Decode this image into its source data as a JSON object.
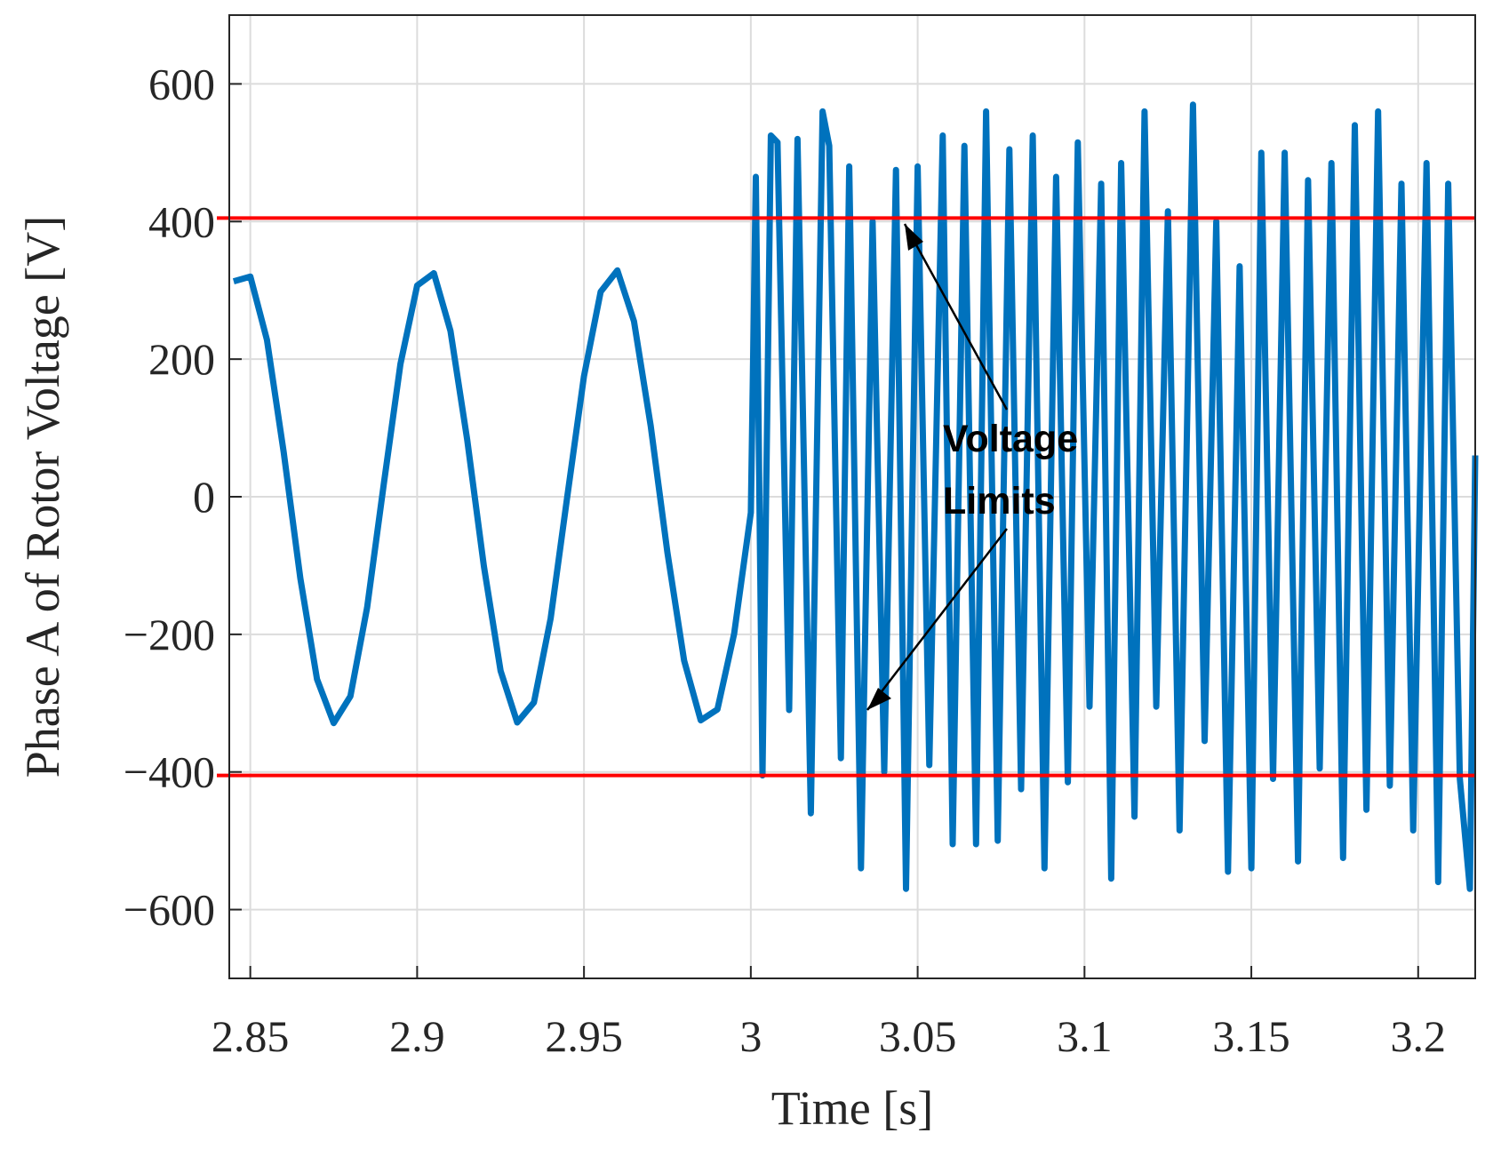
{
  "chart_data": {
    "type": "line",
    "xlabel": "Time [s]",
    "ylabel": "Phase A of Rotor Voltage [V]",
    "xlim": [
      2.8437,
      3.2171
    ],
    "ylim": [
      -700,
      700
    ],
    "xticks": [
      2.85,
      2.9,
      2.95,
      3,
      3.05,
      3.1,
      3.15,
      3.2
    ],
    "yticks": [
      {
        "value": -600,
        "label": "−600"
      },
      {
        "value": -400,
        "label": "−400"
      },
      {
        "value": -200,
        "label": "−200"
      },
      0,
      200,
      400,
      600
    ],
    "grid": true,
    "x": [
      2.845,
      2.85,
      2.855,
      2.86,
      2.865,
      2.87,
      2.875,
      2.88,
      2.885,
      2.89,
      2.895,
      2.9,
      2.905,
      2.91,
      2.915,
      2.92,
      2.925,
      2.93,
      2.935,
      2.94,
      2.945,
      2.95,
      2.955,
      2.96,
      2.965,
      2.97,
      2.975,
      2.98,
      2.985,
      2.99,
      2.995,
      3.0,
      3.0015,
      3.0035,
      3.006,
      3.008,
      3.0115,
      3.014,
      3.018,
      3.0215,
      3.0235,
      3.027,
      3.0295,
      3.033,
      3.0365,
      3.04,
      3.0435,
      3.0465,
      3.05,
      3.0535,
      3.0575,
      3.0605,
      3.064,
      3.0675,
      3.0705,
      3.074,
      3.0775,
      3.081,
      3.0845,
      3.088,
      3.0915,
      3.095,
      3.098,
      3.1015,
      3.105,
      3.108,
      3.111,
      3.115,
      3.118,
      3.1215,
      3.125,
      3.1285,
      3.1325,
      3.136,
      3.1395,
      3.143,
      3.1465,
      3.15,
      3.153,
      3.1565,
      3.16,
      3.164,
      3.167,
      3.1705,
      3.174,
      3.1775,
      3.181,
      3.1845,
      3.188,
      3.1915,
      3.195,
      3.1985,
      3.2025,
      3.206,
      3.209,
      3.2125,
      3.2155,
      3.2171
    ],
    "series": [
      {
        "color": "#0072bd",
        "values": [
          313,
          320,
          228,
          65,
          -119,
          -265,
          -329,
          -290,
          -161,
          18,
          193,
          307,
          325,
          241,
          83,
          -101,
          -253,
          -328,
          -299,
          -177,
          0,
          175,
          298,
          329,
          255,
          103,
          -81,
          -238,
          -325,
          -309,
          -199,
          -23,
          465,
          -405,
          525,
          515,
          -310,
          520,
          -460,
          560,
          510,
          -380,
          480,
          -540,
          400,
          -400,
          475,
          -570,
          480,
          -390,
          525,
          -505,
          510,
          -505,
          560,
          -500,
          505,
          -425,
          525,
          -540,
          465,
          -415,
          515,
          -305,
          455,
          -555,
          485,
          -465,
          560,
          -305,
          415,
          -485,
          570,
          -355,
          400,
          -545,
          335,
          -540,
          500,
          -410,
          500,
          -530,
          460,
          -395,
          485,
          -525,
          540,
          -455,
          560,
          -420,
          455,
          -485,
          485,
          -560,
          455,
          -410,
          -570,
          60
        ]
      }
    ],
    "hlines": [
      {
        "value": 405,
        "color": "#ff0000"
      },
      {
        "value": -405,
        "color": "#ff0000"
      }
    ],
    "annotation": [
      "Voltage",
      "Limits"
    ]
  }
}
